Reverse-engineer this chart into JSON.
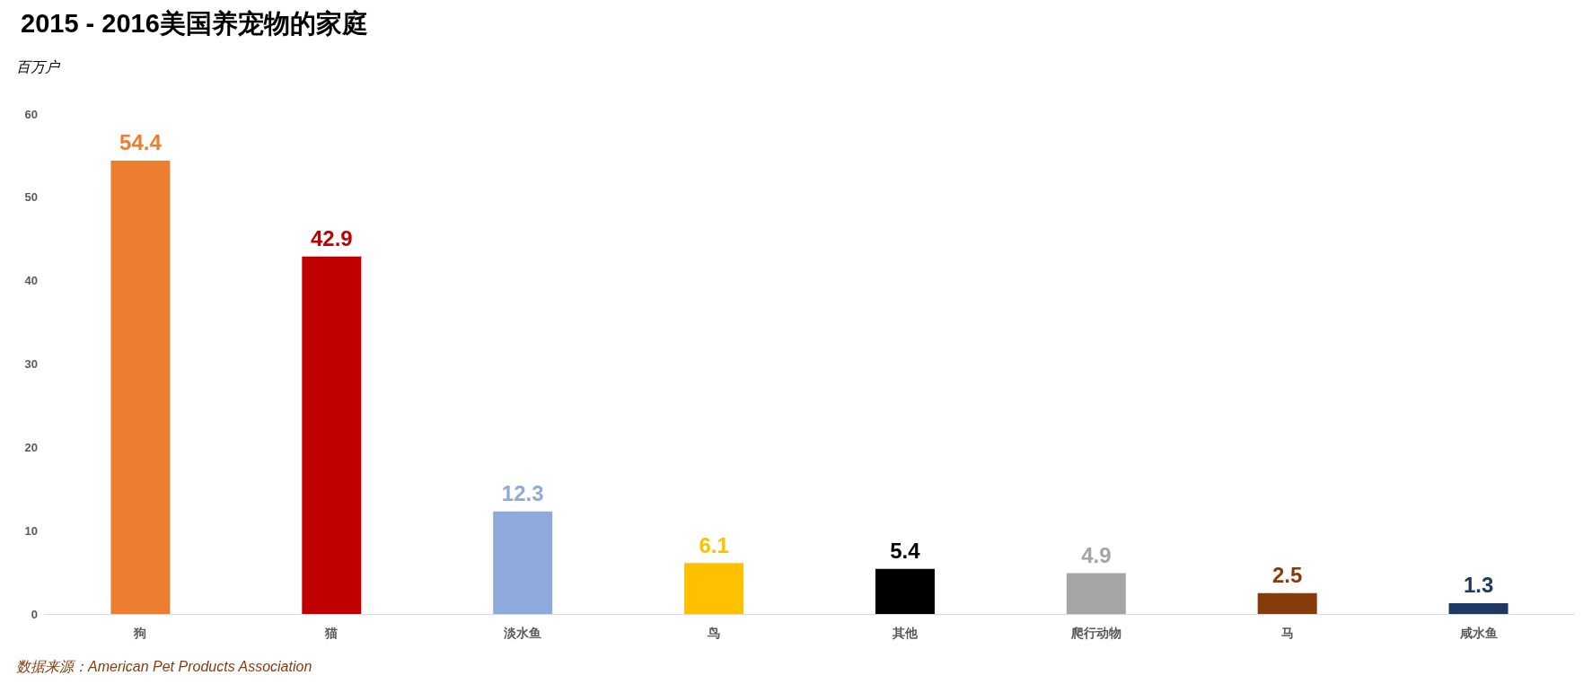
{
  "chart_data": {
    "type": "bar",
    "title": "2015 - 2016美国养宠物的家庭",
    "ylabel": "百万户",
    "categories": [
      "狗",
      "猫",
      "淡水鱼",
      "鸟",
      "其他",
      "爬行动物",
      "马",
      "咸水鱼"
    ],
    "values": [
      54.4,
      42.9,
      12.3,
      6.1,
      5.4,
      4.9,
      2.5,
      1.3
    ],
    "colors": [
      "#ed7d31",
      "#c00000",
      "#8eaadb",
      "#ffc000",
      "#000000",
      "#a5a5a5",
      "#843c0c",
      "#1f3864"
    ],
    "ylim": [
      0,
      60
    ],
    "yticks": [
      0,
      10,
      20,
      30,
      40,
      50,
      60
    ],
    "grid": false,
    "data_labels": true,
    "annotations": [
      "数据来源：American Pet Products Association"
    ]
  }
}
